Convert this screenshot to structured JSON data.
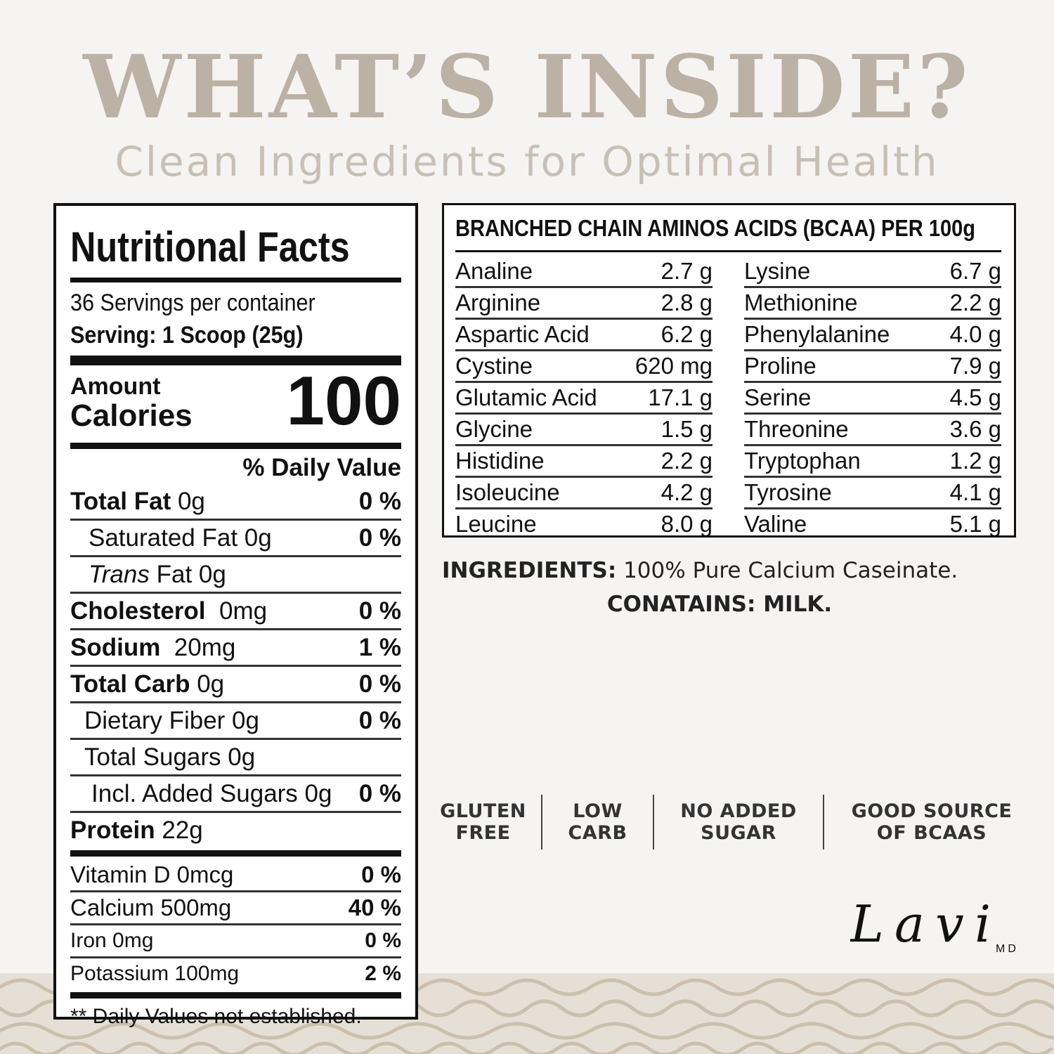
{
  "header": {
    "title": "WHAT’S INSIDE?",
    "subtitle": "Clean Ingredients for Optimal Health"
  },
  "nutrition": {
    "title": "Nutritional Facts",
    "servings": "36 Servings per container",
    "serving_size": "Serving: 1 Scoop (25g)",
    "amount_label": "Amount",
    "calories_label": "Calories",
    "calories_value": "100",
    "daily_value_header": "% Daily Value",
    "rows": {
      "total_fat": {
        "label": "Total Fat",
        "value": "0g",
        "pct": "0 %"
      },
      "saturated_fat": {
        "label": "Saturated Fat 0g",
        "pct": "0 %"
      },
      "trans_fat": {
        "label_italic": "Trans",
        "label": "Fat 0g"
      },
      "cholesterol": {
        "label": "Cholesterol",
        "value": "0mg",
        "pct": "0 %"
      },
      "sodium": {
        "label": "Sodium",
        "value": "20mg",
        "pct": "1 %"
      },
      "total_carb": {
        "label": "Total Carb",
        "value": "0g",
        "pct": "0 %"
      },
      "dietary_fiber": {
        "label": "Dietary Fiber 0g",
        "pct": "0 %"
      },
      "total_sugars": {
        "label": "Total Sugars 0g"
      },
      "added_sugars": {
        "label": "Incl. Added Sugars 0g",
        "pct": "0 %"
      },
      "protein": {
        "label": "Protein",
        "value": "22g"
      }
    },
    "vitamins": [
      {
        "label": "Vitamin D 0mcg",
        "pct": "0 %"
      },
      {
        "label": "Calcium 500mg",
        "pct": "40 %"
      },
      {
        "label": "Iron 0mg",
        "pct": "0 %"
      },
      {
        "label": "Potassium 100mg",
        "pct": "2 %"
      }
    ],
    "footnote": "** Daily Values not established."
  },
  "bcaa": {
    "title": "BRANCHED CHAIN AMINOS ACIDS (BCAA) PER 100g",
    "left": [
      {
        "name": "Analine",
        "amount": "2.7 g"
      },
      {
        "name": "Arginine",
        "amount": "2.8 g"
      },
      {
        "name": "Aspartic Acid",
        "amount": "6.2 g"
      },
      {
        "name": "Cystine",
        "amount": "620 mg"
      },
      {
        "name": "Glutamic Acid",
        "amount": "17.1 g"
      },
      {
        "name": "Glycine",
        "amount": "1.5 g"
      },
      {
        "name": "Histidine",
        "amount": "2.2 g"
      },
      {
        "name": "Isoleucine",
        "amount": "4.2 g"
      },
      {
        "name": "Leucine",
        "amount": "8.0 g"
      }
    ],
    "right": [
      {
        "name": "Lysine",
        "amount": "6.7 g"
      },
      {
        "name": "Methionine",
        "amount": "2.2 g"
      },
      {
        "name": "Phenylalanine",
        "amount": "4.0 g"
      },
      {
        "name": "Proline",
        "amount": "7.9 g"
      },
      {
        "name": "Serine",
        "amount": "4.5 g"
      },
      {
        "name": "Threonine",
        "amount": "3.6 g"
      },
      {
        "name": "Tryptophan",
        "amount": "1.2 g"
      },
      {
        "name": "Tyrosine",
        "amount": "4.1 g"
      },
      {
        "name": "Valine",
        "amount": "5.1 g"
      }
    ]
  },
  "ingredients": {
    "label": "INGREDIENTS:",
    "text": " 100% Pure Calcium Caseinate.",
    "contains": "CONATAINS: MILK."
  },
  "badges": [
    {
      "line1": "GLUTEN",
      "line2": "FREE"
    },
    {
      "line1": "LOW",
      "line2": "CARB"
    },
    {
      "line1": "NO ADDED",
      "line2": "SUGAR"
    },
    {
      "line1": "GOOD SOURCE",
      "line2": "OF BCAAS"
    }
  ],
  "logo": {
    "text": "Lavi",
    "suffix": "MD"
  },
  "colors": {
    "headline": "#bcb1a5",
    "subtitle": "#c8bfb5",
    "background": "#f5f4f2",
    "pattern": "#e6dfd5"
  }
}
